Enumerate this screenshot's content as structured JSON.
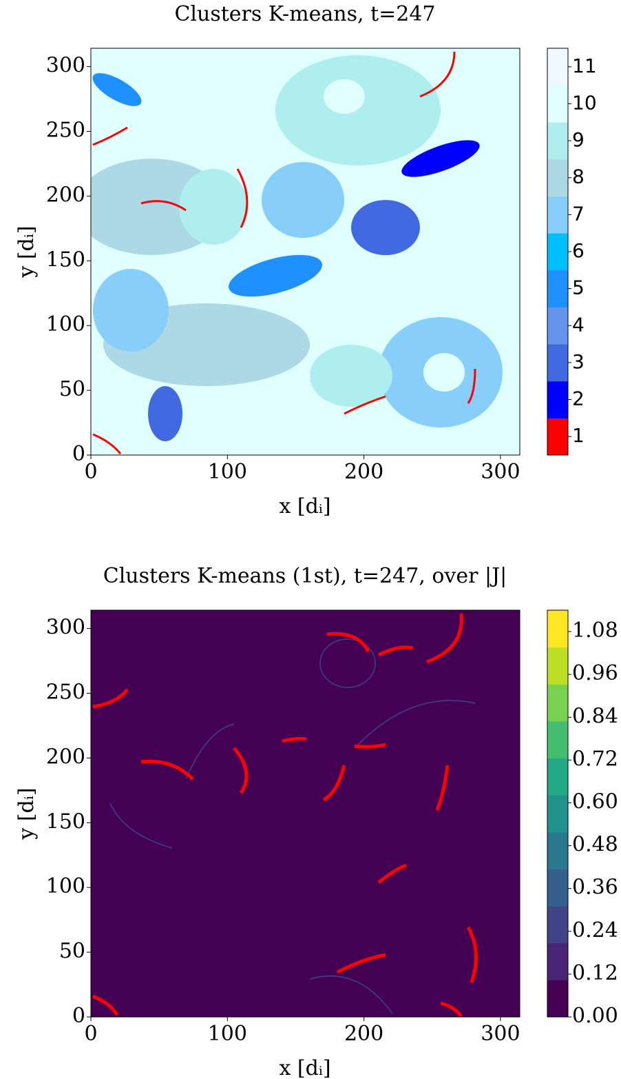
{
  "chart_data": [
    {
      "type": "heatmap",
      "title": "Clusters K-means, t=247",
      "xlabel": "x [dᵢ]",
      "ylabel": "y [dᵢ]",
      "xlim": [
        0,
        314.16
      ],
      "ylim": [
        0,
        314.16
      ],
      "xticks": [
        0,
        100,
        200,
        300
      ],
      "yticks": [
        0,
        50,
        100,
        150,
        200,
        250,
        300
      ],
      "colorbar": {
        "lim": [
          0.5,
          11.5
        ],
        "ticks": [
          1,
          2,
          3,
          4,
          5,
          6,
          7,
          8,
          9,
          10,
          11
        ],
        "colors": [
          "#ff0000",
          "#0000ff",
          "#4169e1",
          "#6495ed",
          "#1e90ff",
          "#00bfff",
          "#87cefa",
          "#add8e6",
          "#afeeee",
          "#e0ffff",
          "#f0f8ff"
        ]
      }
    },
    {
      "type": "heatmap",
      "title": "Clusters K-means (1st), t=247, over |J|",
      "xlabel": "x [dᵢ]",
      "ylabel": "y [dᵢ]",
      "xlim": [
        0,
        314.16
      ],
      "ylim": [
        0,
        314.16
      ],
      "xticks": [
        0,
        100,
        200,
        300
      ],
      "yticks": [
        0,
        50,
        100,
        150,
        200,
        250,
        300
      ],
      "colorbar": {
        "lim": [
          0,
          1.14
        ],
        "ticks": [
          {
            "value": 0,
            "label": "0.00"
          },
          {
            "value": 0.12,
            "label": "0.12"
          },
          {
            "value": 0.24,
            "label": "0.24"
          },
          {
            "value": 0.36,
            "label": "0.36"
          },
          {
            "value": 0.48,
            "label": "0.48"
          },
          {
            "value": 0.6,
            "label": "0.60"
          },
          {
            "value": 0.72,
            "label": "0.72"
          },
          {
            "value": 0.84,
            "label": "0.84"
          },
          {
            "value": 0.96,
            "label": "0.96"
          },
          {
            "value": 1.08,
            "label": "1.08"
          }
        ],
        "colors": [
          "#440154",
          "#482475",
          "#414487",
          "#355f8d",
          "#2a788e",
          "#21918c",
          "#22a884",
          "#44bf70",
          "#7ad151",
          "#bddf26",
          "#fde725"
        ]
      }
    }
  ]
}
